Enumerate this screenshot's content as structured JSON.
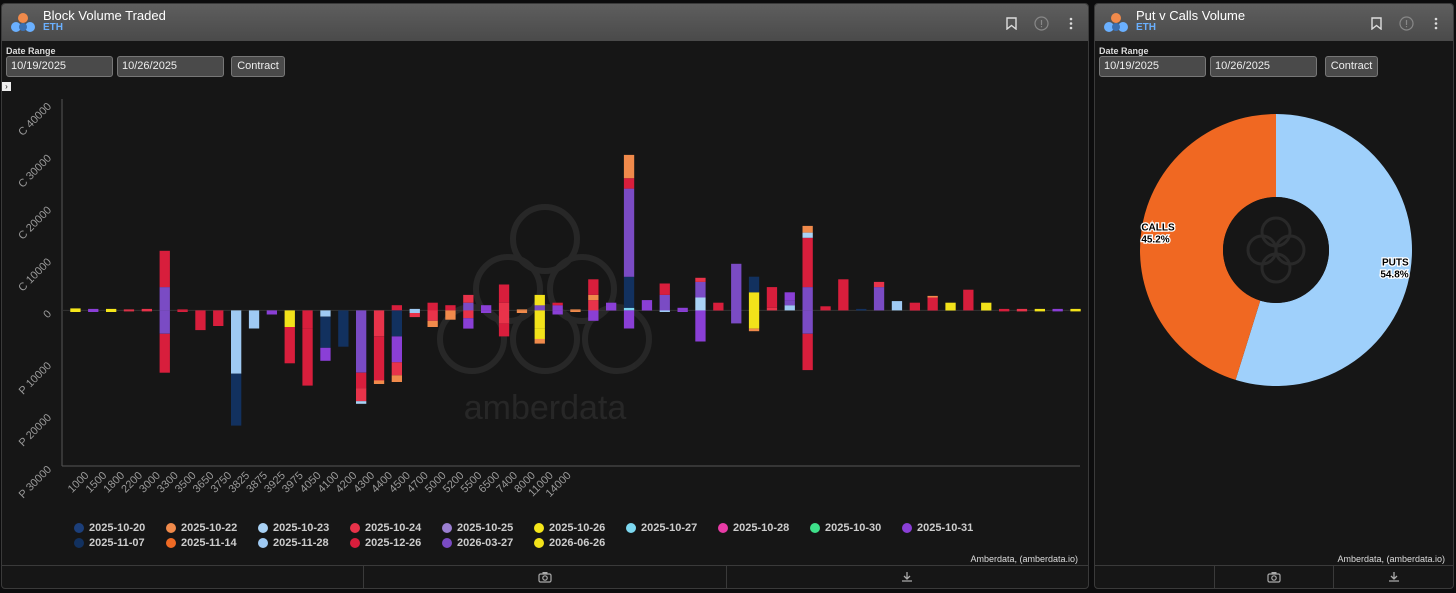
{
  "colors": {
    "accent": "#6ab0ff",
    "calls": "#f06822",
    "puts": "#9fd0fb"
  },
  "left_panel": {
    "title": "Block Volume Traded",
    "subtitle": "ETH",
    "date_range_label": "Date Range",
    "start_date": "10/19/2025",
    "end_date": "10/26/2025",
    "contract_button": "Contract",
    "credit": "Amberdata, (amberdata.io)",
    "icons": [
      "bookmark-icon",
      "info-icon",
      "more-icon"
    ]
  },
  "right_panel": {
    "title": "Put v Calls Volume",
    "subtitle": "ETH",
    "date_range_label": "Date Range",
    "start_date": "10/19/2025",
    "end_date": "10/26/2025",
    "contract_button": "Contract",
    "credit": "Amberdata, (amberdata.io)"
  },
  "chart_data": [
    {
      "type": "bar",
      "stacked": true,
      "y_tick_labels": [
        "C 40000",
        "C 30000",
        "C 20000",
        "C 10000",
        "0",
        "P 10000",
        "P 20000",
        "P 30000"
      ],
      "y_ticks": [
        40000,
        30000,
        20000,
        10000,
        0,
        -10000,
        -20000,
        -30000
      ],
      "ylim": [
        -30000,
        40000
      ],
      "x_tick_labels": [
        "1000",
        "1500",
        "1800",
        "2200",
        "3000",
        "3300",
        "3500",
        "3650",
        "3750",
        "3825",
        "3875",
        "3925",
        "3975",
        "4050",
        "4100",
        "4200",
        "4300",
        "4400",
        "4500",
        "4700",
        "5000",
        "5200",
        "5500",
        "6500",
        "7400",
        "8000",
        "11000",
        "14000"
      ],
      "watermark": "amberdata",
      "legend": [
        {
          "label": "2025-10-20",
          "color": "#1c3f7a"
        },
        {
          "label": "2025-10-22",
          "color": "#f08a4b"
        },
        {
          "label": "2025-10-23",
          "color": "#a9d2f5"
        },
        {
          "label": "2025-10-24",
          "color": "#e8334a"
        },
        {
          "label": "2025-10-25",
          "color": "#9b7fd1"
        },
        {
          "label": "2025-10-26",
          "color": "#f5e61a"
        },
        {
          "label": "2025-10-27",
          "color": "#7dd8f0"
        },
        {
          "label": "2025-10-28",
          "color": "#e83ba6"
        },
        {
          "label": "2025-10-30",
          "color": "#3ee08a"
        },
        {
          "label": "2025-10-31",
          "color": "#8a3fd6"
        },
        {
          "label": "2025-11-07",
          "color": "#12315f"
        },
        {
          "label": "2025-11-14",
          "color": "#ef6a24"
        },
        {
          "label": "2025-11-28",
          "color": "#9fcaf3"
        },
        {
          "label": "2025-12-26",
          "color": "#d81e3c"
        },
        {
          "label": "2026-03-27",
          "color": "#7a4bc4"
        },
        {
          "label": "2026-06-26",
          "color": "#f2e21a"
        }
      ],
      "bars": [
        {
          "x": 1,
          "segs": [
            [
              400,
              "#f5e61a"
            ],
            [
              -300,
              "#f5e61a"
            ]
          ]
        },
        {
          "x": 3,
          "segs": [
            [
              300,
              "#8a3fd6"
            ],
            [
              -300,
              "#8a3fd6"
            ]
          ]
        },
        {
          "x": 5,
          "segs": [
            [
              300,
              "#f5e61a"
            ],
            [
              -300,
              "#f5e61a"
            ]
          ]
        },
        {
          "x": 7,
          "segs": [
            [
              200,
              "#e8334a"
            ],
            [
              -200,
              "#e8334a"
            ]
          ]
        },
        {
          "x": 9,
          "segs": [
            [
              300,
              "#e8334a"
            ],
            [
              -200,
              "#e8334a"
            ]
          ]
        },
        {
          "x": 11,
          "segs": [
            [
              4500,
              "#7a4bc4"
            ],
            [
              7000,
              "#d81e3c"
            ],
            [
              -4500,
              "#7a4bc4"
            ],
            [
              -7500,
              "#d81e3c"
            ]
          ]
        },
        {
          "x": 13,
          "segs": [
            [
              200,
              "#d81e3c"
            ],
            [
              -300,
              "#d81e3c"
            ]
          ]
        },
        {
          "x": 15,
          "segs": [
            [
              -3800,
              "#d81e3c"
            ]
          ]
        },
        {
          "x": 17,
          "segs": [
            [
              -3000,
              "#d81e3c"
            ]
          ]
        },
        {
          "x": 19,
          "segs": [
            [
              -3200,
              "#9fcaf3"
            ],
            [
              -9000,
              "#9fcaf3"
            ],
            [
              -10000,
              "#12315f"
            ]
          ]
        },
        {
          "x": 21,
          "segs": [
            [
              -3500,
              "#9fcaf3"
            ]
          ]
        },
        {
          "x": 23,
          "segs": [
            [
              -800,
              "#8a3fd6"
            ]
          ]
        },
        {
          "x": 25,
          "segs": [
            [
              -3200,
              "#f2e21a"
            ],
            [
              -2500,
              "#d81e3c"
            ],
            [
              -4500,
              "#d81e3c"
            ]
          ]
        },
        {
          "x": 27,
          "segs": [
            [
              -3500,
              "#d81e3c"
            ],
            [
              -11000,
              "#d81e3c"
            ]
          ]
        },
        {
          "x": 29,
          "segs": [
            [
              -1200,
              "#9fcaf3"
            ],
            [
              -6000,
              "#12315f"
            ],
            [
              -2500,
              "#8a3fd6"
            ]
          ]
        },
        {
          "x": 31,
          "segs": [
            [
              -7000,
              "#12315f"
            ]
          ]
        },
        {
          "x": 33,
          "segs": [
            [
              -12000,
              "#7a4bc4"
            ],
            [
              -3000,
              "#d81e3c"
            ],
            [
              -2500,
              "#e8334a"
            ],
            [
              -500,
              "#a9d2f5"
            ]
          ]
        },
        {
          "x": 35,
          "segs": [
            [
              -5000,
              "#e8334a"
            ],
            [
              -8500,
              "#d81e3c"
            ],
            [
              -700,
              "#f08a4b"
            ]
          ]
        },
        {
          "x": 37,
          "segs": [
            [
              1000,
              "#d81e3c"
            ],
            [
              -5000,
              "#12315f"
            ],
            [
              -5000,
              "#8a3fd6"
            ],
            [
              -2500,
              "#e8334a"
            ],
            [
              -1300,
              "#f08a4b"
            ]
          ]
        },
        {
          "x": 39,
          "segs": [
            [
              300,
              "#9fcaf3"
            ],
            [
              -500,
              "#9fcaf3"
            ],
            [
              -800,
              "#e8334a"
            ]
          ]
        },
        {
          "x": 41,
          "segs": [
            [
              1500,
              "#d81e3c"
            ],
            [
              -2000,
              "#e8334a"
            ],
            [
              -1200,
              "#f08a4b"
            ]
          ]
        },
        {
          "x": 43,
          "segs": [
            [
              1000,
              "#d81e3c"
            ],
            [
              -1800,
              "#f08a4b"
            ]
          ]
        },
        {
          "x": 45,
          "segs": [
            [
              1500,
              "#7a4bc4"
            ],
            [
              1500,
              "#e8334a"
            ],
            [
              -1500,
              "#e8334a"
            ],
            [
              -2000,
              "#8a3fd6"
            ]
          ]
        },
        {
          "x": 47,
          "segs": [
            [
              1000,
              "#8a3fd6"
            ],
            [
              -500,
              "#8a3fd6"
            ]
          ]
        },
        {
          "x": 49,
          "segs": [
            [
              1500,
              "#e8334a"
            ],
            [
              3500,
              "#d81e3c"
            ],
            [
              -2500,
              "#e8334a"
            ],
            [
              -2500,
              "#d81e3c"
            ]
          ]
        },
        {
          "x": 51,
          "segs": [
            [
              200,
              "#f08a4b"
            ],
            [
              -500,
              "#f08a4b"
            ]
          ]
        },
        {
          "x": 53,
          "segs": [
            [
              1000,
              "#7a4bc4"
            ],
            [
              2000,
              "#f2e21a"
            ],
            [
              -3500,
              "#f2e21a"
            ],
            [
              -2000,
              "#f2e21a"
            ],
            [
              -900,
              "#f08a4b"
            ]
          ]
        },
        {
          "x": 55,
          "segs": [
            [
              1000,
              "#8a3fd6"
            ],
            [
              500,
              "#d81e3c"
            ],
            [
              -800,
              "#8a3fd6"
            ]
          ]
        },
        {
          "x": 57,
          "segs": [
            [
              200,
              "#f08a4b"
            ],
            [
              -300,
              "#f08a4b"
            ]
          ]
        },
        {
          "x": 59,
          "segs": [
            [
              2000,
              "#e8334a"
            ],
            [
              1000,
              "#f08a4b"
            ],
            [
              3000,
              "#d81e3c"
            ],
            [
              -2000,
              "#8a3fd6"
            ]
          ]
        },
        {
          "x": 61,
          "segs": [
            [
              1500,
              "#8a3fd6"
            ]
          ]
        },
        {
          "x": 63,
          "segs": [
            [
              500,
              "#7dd8f0"
            ],
            [
              6000,
              "#12315f"
            ],
            [
              17000,
              "#7a4bc4"
            ],
            [
              2000,
              "#d81e3c"
            ],
            [
              4500,
              "#f08a4b"
            ],
            [
              -3500,
              "#8a3fd6"
            ]
          ]
        },
        {
          "x": 65,
          "segs": [
            [
              2000,
              "#8a3fd6"
            ]
          ]
        },
        {
          "x": 67,
          "segs": [
            [
              3000,
              "#7a4bc4"
            ],
            [
              2200,
              "#d81e3c"
            ],
            [
              -300,
              "#9fcaf3"
            ]
          ]
        },
        {
          "x": 69,
          "segs": [
            [
              500,
              "#8a3fd6"
            ],
            [
              -300,
              "#8a3fd6"
            ]
          ]
        },
        {
          "x": 71,
          "segs": [
            [
              2500,
              "#a9d2f5"
            ],
            [
              3000,
              "#7a4bc4"
            ],
            [
              800,
              "#e8334a"
            ],
            [
              -6000,
              "#8a3fd6"
            ]
          ]
        },
        {
          "x": 73,
          "segs": [
            [
              1500,
              "#d81e3c"
            ]
          ]
        },
        {
          "x": 75,
          "segs": [
            [
              9000,
              "#7a4bc4"
            ],
            [
              -2500,
              "#7a4bc4"
            ]
          ]
        },
        {
          "x": 77,
          "segs": [
            [
              3500,
              "#f2e21a"
            ],
            [
              3000,
              "#12315f"
            ],
            [
              -3500,
              "#f2e21a"
            ],
            [
              -500,
              "#f08a4b"
            ]
          ]
        },
        {
          "x": 79,
          "segs": [
            [
              500,
              "#e8334a"
            ],
            [
              4000,
              "#d81e3c"
            ]
          ]
        },
        {
          "x": 81,
          "segs": [
            [
              1000,
              "#9fcaf3"
            ],
            [
              1000,
              "#7a4bc4"
            ],
            [
              1500,
              "#8a3fd6"
            ]
          ]
        },
        {
          "x": 83,
          "segs": [
            [
              4500,
              "#7a4bc4"
            ],
            [
              9500,
              "#d81e3c"
            ],
            [
              1000,
              "#a9d2f5"
            ],
            [
              1300,
              "#f08a4b"
            ],
            [
              -4500,
              "#7a4bc4"
            ],
            [
              -7000,
              "#d81e3c"
            ]
          ]
        },
        {
          "x": 85,
          "segs": [
            [
              800,
              "#d81e3c"
            ]
          ]
        },
        {
          "x": 87,
          "segs": [
            [
              6000,
              "#d81e3c"
            ]
          ]
        },
        {
          "x": 89,
          "segs": [
            [
              300,
              "#12315f"
            ]
          ]
        },
        {
          "x": 91,
          "segs": [
            [
              4500,
              "#7a4bc4"
            ],
            [
              1000,
              "#e8334a"
            ]
          ]
        },
        {
          "x": 93,
          "segs": [
            [
              1800,
              "#9fcaf3"
            ]
          ]
        },
        {
          "x": 95,
          "segs": [
            [
              1500,
              "#d81e3c"
            ]
          ]
        },
        {
          "x": 97,
          "segs": [
            [
              2500,
              "#d81e3c"
            ],
            [
              300,
              "#f08a4b"
            ]
          ]
        },
        {
          "x": 99,
          "segs": [
            [
              1500,
              "#f2e21a"
            ]
          ]
        },
        {
          "x": 101,
          "segs": [
            [
              4000,
              "#d81e3c"
            ]
          ]
        },
        {
          "x": 103,
          "segs": [
            [
              1500,
              "#f2e21a"
            ]
          ]
        },
        {
          "x": 105,
          "segs": [
            [
              300,
              "#d81e3c"
            ],
            [
              -200,
              "#d81e3c"
            ]
          ]
        },
        {
          "x": 107,
          "segs": [
            [
              300,
              "#e8334a"
            ],
            [
              -200,
              "#e8334a"
            ]
          ]
        },
        {
          "x": 109,
          "segs": [
            [
              300,
              "#f2e21a"
            ],
            [
              -200,
              "#f2e21a"
            ]
          ]
        },
        {
          "x": 111,
          "segs": [
            [
              300,
              "#8a3fd6"
            ],
            [
              -200,
              "#8a3fd6"
            ]
          ]
        },
        {
          "x": 113,
          "segs": [
            [
              300,
              "#f2e21a"
            ],
            [
              -200,
              "#f2e21a"
            ]
          ]
        }
      ]
    },
    {
      "type": "pie",
      "donut": true,
      "slices": [
        {
          "label": "PUTS",
          "value": 54.8,
          "display": "54.8%",
          "color": "#9fd0fb"
        },
        {
          "label": "CALLS",
          "value": 45.2,
          "display": "45.2%",
          "color": "#f06822"
        }
      ]
    }
  ]
}
